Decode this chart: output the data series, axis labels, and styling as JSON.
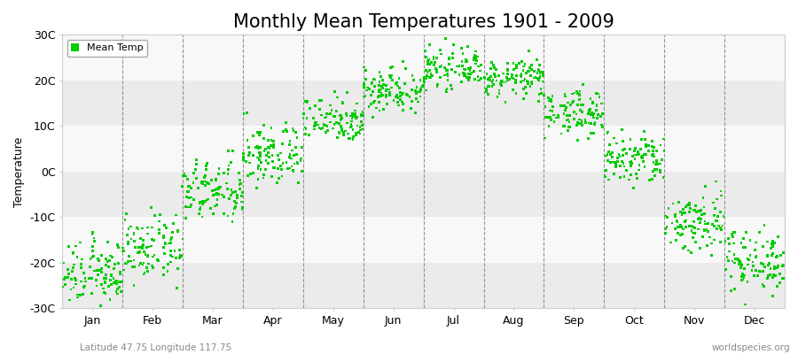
{
  "title": "Monthly Mean Temperatures 1901 - 2009",
  "ylabel": "Temperature",
  "xlabel_bottom_left": "Latitude 47.75 Longitude 117.75",
  "xlabel_bottom_right": "worldspecies.org",
  "legend_label": "Mean Temp",
  "ylim": [
    -30,
    30
  ],
  "yticks": [
    -30,
    -20,
    -10,
    0,
    10,
    20,
    30
  ],
  "ytick_labels": [
    "-30C",
    "-20C",
    "-10C",
    "0C",
    "10C",
    "20C",
    "30C"
  ],
  "months": [
    "Jan",
    "Feb",
    "Mar",
    "Apr",
    "May",
    "Jun",
    "Jul",
    "Aug",
    "Sep",
    "Oct",
    "Nov",
    "Dec"
  ],
  "dot_color": "#00cc00",
  "background_color": "#f5f5f5",
  "band_color_even": "#ebebeb",
  "band_color_odd": "#f8f8f8",
  "title_fontsize": 15,
  "label_fontsize": 9,
  "tick_fontsize": 9,
  "mean_temps": {
    "Jan": -22.5,
    "Feb": -17.0,
    "Mar": -4.5,
    "Apr": 3.5,
    "May": 11.5,
    "Jun": 18.0,
    "Jul": 22.5,
    "Aug": 20.5,
    "Sep": 13.0,
    "Oct": 2.5,
    "Nov": -11.0,
    "Dec": -19.5
  },
  "temp_std": {
    "Jan": 3.5,
    "Feb": 3.5,
    "Mar": 3.5,
    "Apr": 3.5,
    "May": 2.5,
    "Jun": 2.5,
    "Jul": 2.0,
    "Aug": 2.0,
    "Sep": 2.5,
    "Oct": 3.0,
    "Nov": 3.5,
    "Dec": 3.5
  },
  "n_years": 109,
  "seed": 12345
}
